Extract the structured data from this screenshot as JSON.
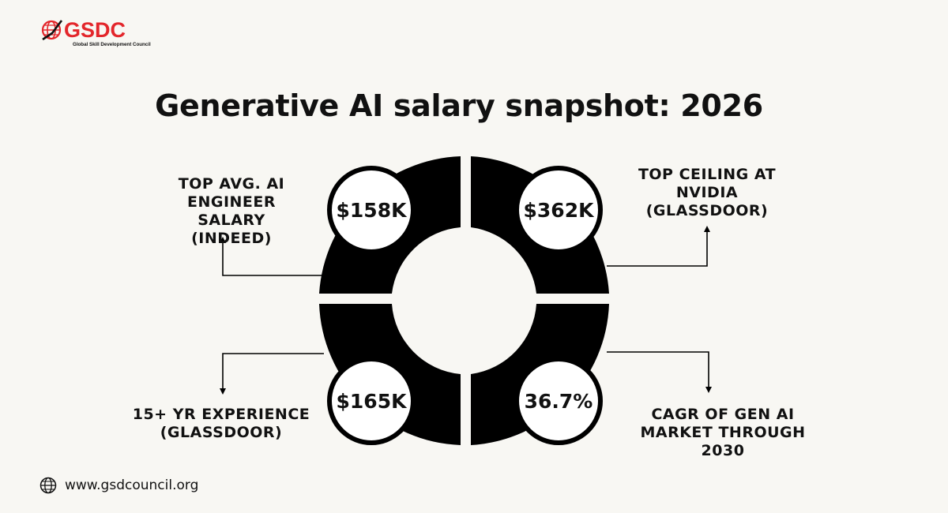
{
  "logo": {
    "name": "GSDC",
    "subtitle": "Global Skill Development Council",
    "brand_color": "#e3262b",
    "icon": "globe-icon"
  },
  "title": "Generative AI salary snapshot: 2026",
  "stats": [
    {
      "value": "$158K",
      "label": "TOP AVG. AI ENGINEER SALARY (INDEED)"
    },
    {
      "value": "$362K",
      "label": "TOP CEILING AT NVIDIA (GLASSDOOR)"
    },
    {
      "value": "$165K",
      "label": "15+ YR EXPERIENCE (GLASSDOOR)"
    },
    {
      "value": "36.7%",
      "label": "CAGR OF GEN AI MARKET THROUGH 2030"
    }
  ],
  "footer": {
    "website": "www.gsdcouncil.org",
    "icon": "globe-icon"
  },
  "colors": {
    "background": "#f8f7f3",
    "donut": "#000000",
    "badge_fill": "#ffffff"
  }
}
